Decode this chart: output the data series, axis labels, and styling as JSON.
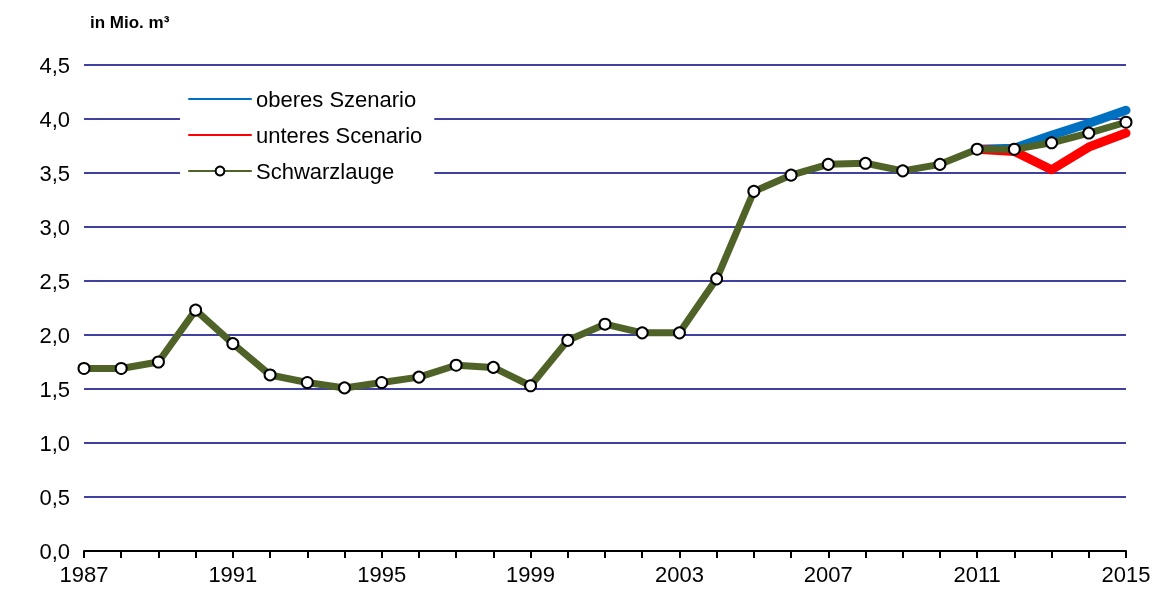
{
  "chart_data": {
    "type": "line",
    "ylabel": "in Mio. m³",
    "x": [
      1987,
      1988,
      1989,
      1990,
      1991,
      1992,
      1993,
      1994,
      1995,
      1996,
      1997,
      1998,
      1999,
      2000,
      2001,
      2002,
      2003,
      2004,
      2005,
      2006,
      2007,
      2008,
      2009,
      2010,
      2011,
      2012,
      2013,
      2014,
      2015
    ],
    "series": [
      {
        "name": "oberes Szenario",
        "color": "#0070c0",
        "marker": "none",
        "values": [
          null,
          null,
          null,
          null,
          null,
          null,
          null,
          null,
          null,
          null,
          null,
          null,
          null,
          null,
          null,
          null,
          null,
          null,
          null,
          null,
          null,
          null,
          null,
          null,
          3.72,
          3.73,
          3.85,
          3.96,
          4.08
        ]
      },
      {
        "name": "unteres Scenario",
        "color": "#ff0000",
        "marker": "none",
        "values": [
          null,
          null,
          null,
          null,
          null,
          null,
          null,
          null,
          null,
          null,
          null,
          null,
          null,
          null,
          null,
          null,
          null,
          null,
          null,
          null,
          null,
          null,
          null,
          null,
          3.72,
          3.7,
          3.53,
          3.74,
          3.87
        ]
      },
      {
        "name": "Schwarzlauge",
        "color": "#4f6228",
        "marker": "circle",
        "values": [
          1.69,
          1.69,
          1.75,
          2.23,
          1.92,
          1.63,
          1.56,
          1.51,
          1.56,
          1.61,
          1.72,
          1.7,
          1.53,
          1.95,
          2.1,
          2.02,
          2.02,
          2.52,
          3.33,
          3.48,
          3.58,
          3.59,
          3.52,
          3.58,
          3.72,
          3.72,
          3.78,
          3.87,
          3.97
        ]
      }
    ],
    "xlim": [
      1987,
      2015
    ],
    "xticks": [
      1987,
      {
        "value": 1988,
        "label": null
      },
      {
        "value": 1989,
        "label": null
      },
      {
        "value": 1990,
        "label": null
      },
      1991,
      {
        "value": 1992,
        "label": null
      },
      {
        "value": 1993,
        "label": null
      },
      {
        "value": 1994,
        "label": null
      },
      1995,
      {
        "value": 1996,
        "label": null
      },
      {
        "value": 1997,
        "label": null
      },
      {
        "value": 1998,
        "label": null
      },
      1999,
      {
        "value": 2000,
        "label": null
      },
      {
        "value": 2001,
        "label": null
      },
      {
        "value": 2002,
        "label": null
      },
      2003,
      {
        "value": 2004,
        "label": null
      },
      {
        "value": 2005,
        "label": null
      },
      {
        "value": 2006,
        "label": null
      },
      2007,
      {
        "value": 2008,
        "label": null
      },
      {
        "value": 2009,
        "label": null
      },
      {
        "value": 2010,
        "label": null
      },
      2011,
      {
        "value": 2012,
        "label": null
      },
      {
        "value": 2013,
        "label": null
      },
      {
        "value": 2014,
        "label": null
      },
      2015
    ],
    "ylim": [
      0,
      4.5
    ],
    "yticks": [
      {
        "value": 0,
        "label": "0,0"
      },
      {
        "value": 0.5,
        "label": "0,5"
      },
      {
        "value": 1,
        "label": "1,0"
      },
      {
        "value": 1.5,
        "label": "1,5"
      },
      {
        "value": 2,
        "label": "2,0"
      },
      {
        "value": 2.5,
        "label": "2,5"
      },
      {
        "value": 3,
        "label": "3,0"
      },
      {
        "value": 3.5,
        "label": "3,5"
      },
      {
        "value": 4,
        "label": "4,0"
      },
      {
        "value": 4.5,
        "label": "4,5"
      }
    ],
    "grid": "y",
    "legend": "top left",
    "line_style": "solid"
  }
}
